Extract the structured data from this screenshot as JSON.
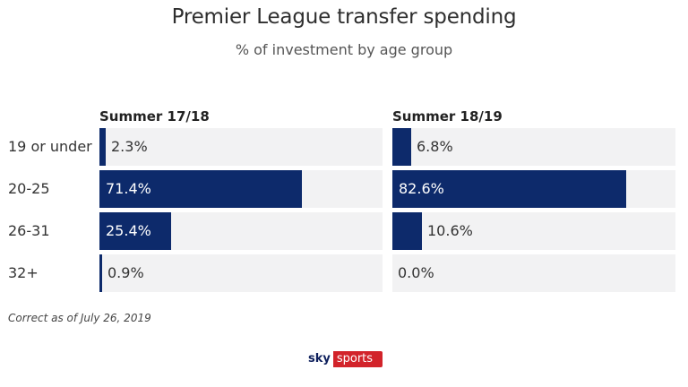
{
  "title": "Premier League transfer spending",
  "subtitle": "% of investment by age group",
  "note": "Correct as of July 26, 2019",
  "logo": {
    "sky": "sky",
    "sports": "sports"
  },
  "colors": {
    "bar": "#0d2a6b",
    "track": "#f2f2f3",
    "brand_red": "#d2232a"
  },
  "chart_data": {
    "type": "bar",
    "orientation": "horizontal",
    "categories": [
      "19 or under",
      "20-25",
      "26-31",
      "32+"
    ],
    "xlim": [
      0,
      100
    ],
    "unit": "%",
    "series": [
      {
        "name": "Summer 17/18",
        "values": [
          2.3,
          71.4,
          25.4,
          0.9
        ],
        "labels": [
          "2.3%",
          "71.4%",
          "25.4%",
          "0.9%"
        ]
      },
      {
        "name": "Summer 18/19",
        "values": [
          6.8,
          82.6,
          10.6,
          0.0
        ],
        "labels": [
          "6.8%",
          "82.6%",
          "10.6%",
          "0.0%"
        ]
      }
    ]
  }
}
